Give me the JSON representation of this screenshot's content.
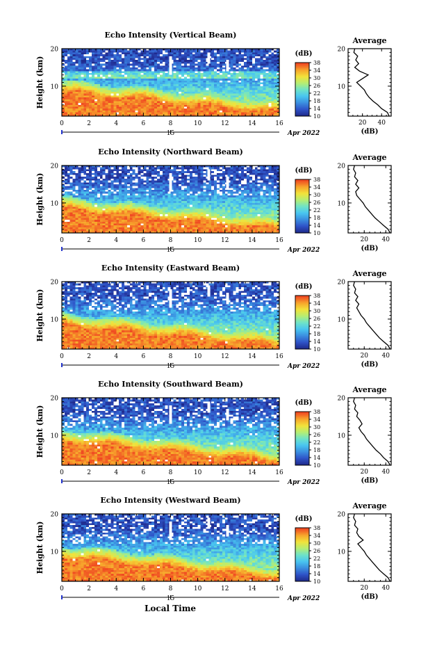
{
  "figure": {
    "bottom_xlabel": "Local Time",
    "date_label": "Apr 2022",
    "colorbar_unit": "(dB)",
    "colorbar_ticks": [
      10,
      14,
      18,
      22,
      26,
      30,
      34,
      38
    ],
    "colors": {
      "ramp": [
        "#1f2a8c",
        "#2f54c8",
        "#3b8fe0",
        "#49c6f0",
        "#6fe3c8",
        "#b6ee72",
        "#f2e23a",
        "#f7a52c",
        "#f04a22"
      ],
      "nodata": "#ffffff"
    }
  },
  "chart_data": [
    {
      "type": "heatmap",
      "title": "Echo Intensity (Vertical Beam)",
      "ylabel": "Height (km)",
      "xlim": [
        0,
        16
      ],
      "ylim": [
        2,
        20
      ],
      "xticks": [
        0,
        2,
        4,
        6,
        8,
        10,
        12,
        14,
        16
      ],
      "yticks": [
        10,
        20
      ],
      "day_marker": "15",
      "day_marker_x": 8,
      "cbar_range": [
        10,
        38
      ],
      "description_values": "high near ground (~38 dB) decreasing with height",
      "average": {
        "title": "Average",
        "xlabel": "(dB)",
        "xticks": [
          20,
          40
        ],
        "xlim": [
          5,
          50
        ],
        "height": [
          2,
          3,
          4,
          5,
          6,
          7,
          8,
          9,
          10,
          11,
          12,
          13,
          14,
          15,
          16,
          17,
          18,
          19,
          20
        ],
        "value": [
          48,
          46,
          40,
          36,
          31,
          27,
          24,
          22,
          18,
          14,
          20,
          26,
          17,
          12,
          16,
          13,
          15,
          11,
          12
        ]
      }
    },
    {
      "type": "heatmap",
      "title": "Echo Intensity (Northward Beam)",
      "ylabel": "Height (km)",
      "xlim": [
        0,
        16
      ],
      "ylim": [
        2,
        20
      ],
      "xticks": [
        0,
        2,
        4,
        6,
        8,
        10,
        12,
        14,
        16
      ],
      "yticks": [
        10,
        20
      ],
      "day_marker": "15",
      "day_marker_x": 8,
      "cbar_range": [
        10,
        38
      ],
      "average": {
        "title": "Average",
        "xlabel": "(dB)",
        "xticks": [
          20,
          40
        ],
        "xlim": [
          5,
          45
        ],
        "height": [
          2,
          3,
          4,
          5,
          6,
          7,
          8,
          9,
          10,
          11,
          12,
          13,
          14,
          15,
          16,
          17,
          18,
          19,
          20
        ],
        "value": [
          44,
          42,
          38,
          34,
          30,
          27,
          24,
          21,
          19,
          16,
          13,
          12,
          15,
          12,
          14,
          11,
          12,
          10,
          11
        ]
      }
    },
    {
      "type": "heatmap",
      "title": "Echo Intensity (Eastward Beam)",
      "ylabel": "Height (km)",
      "xlim": [
        0,
        16
      ],
      "ylim": [
        2,
        20
      ],
      "xticks": [
        0,
        2,
        4,
        6,
        8,
        10,
        12,
        14,
        16
      ],
      "yticks": [
        10,
        20
      ],
      "day_marker": "15",
      "day_marker_x": 8,
      "cbar_range": [
        10,
        38
      ],
      "average": {
        "title": "Average",
        "xlabel": "(dB)",
        "xticks": [
          20,
          40
        ],
        "xlim": [
          5,
          45
        ],
        "height": [
          2,
          3,
          4,
          5,
          6,
          7,
          8,
          9,
          10,
          11,
          12,
          13,
          14,
          15,
          16,
          17,
          18,
          19,
          20
        ],
        "value": [
          44,
          42,
          38,
          34,
          31,
          28,
          25,
          22,
          20,
          17,
          15,
          13,
          15,
          12,
          14,
          11,
          12,
          10,
          11
        ]
      }
    },
    {
      "type": "heatmap",
      "title": "Echo Intensity (Southward Beam)",
      "ylabel": "Height (km)",
      "xlim": [
        0,
        16
      ],
      "ylim": [
        2,
        20
      ],
      "xticks": [
        0,
        2,
        4,
        6,
        8,
        10,
        12,
        14,
        16
      ],
      "yticks": [
        10,
        20
      ],
      "day_marker": "15",
      "day_marker_x": 8,
      "cbar_range": [
        10,
        38
      ],
      "average": {
        "title": "Average",
        "xlabel": "(dB)",
        "xticks": [
          20,
          40
        ],
        "xlim": [
          5,
          45
        ],
        "height": [
          2,
          3,
          4,
          5,
          6,
          7,
          8,
          9,
          10,
          11,
          12,
          13,
          14,
          15,
          16,
          17,
          18,
          19,
          20
        ],
        "value": [
          44,
          42,
          38,
          35,
          31,
          28,
          25,
          22,
          20,
          17,
          15,
          18,
          16,
          13,
          14,
          11,
          12,
          10,
          11
        ]
      }
    },
    {
      "type": "heatmap",
      "title": "Echo Intensity (Westward Beam)",
      "ylabel": "Height (km)",
      "xlim": [
        0,
        16
      ],
      "ylim": [
        2,
        20
      ],
      "xticks": [
        0,
        2,
        4,
        6,
        8,
        10,
        12,
        14,
        16
      ],
      "yticks": [
        10,
        20
      ],
      "day_marker": "15",
      "day_marker_x": 8,
      "cbar_range": [
        10,
        38
      ],
      "average": {
        "title": "Average",
        "xlabel": "(dB)",
        "xticks": [
          20,
          40
        ],
        "xlim": [
          5,
          45
        ],
        "height": [
          2,
          3,
          4,
          5,
          6,
          7,
          8,
          9,
          10,
          11,
          12,
          13,
          14,
          15,
          16,
          17,
          18,
          19,
          20
        ],
        "value": [
          44,
          42,
          38,
          34,
          31,
          28,
          25,
          22,
          20,
          17,
          14,
          19,
          15,
          13,
          14,
          11,
          12,
          10,
          11
        ]
      }
    }
  ]
}
